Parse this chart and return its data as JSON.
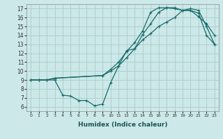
{
  "xlabel": "Humidex (Indice chaleur)",
  "bg_color": "#cce8e8",
  "grid_color": "#aacccc",
  "line_color": "#1a6b6b",
  "xlim": [
    -0.5,
    23.5
  ],
  "ylim": [
    5.5,
    17.5
  ],
  "xticks": [
    0,
    1,
    2,
    3,
    4,
    5,
    6,
    7,
    8,
    9,
    10,
    11,
    12,
    13,
    14,
    15,
    16,
    17,
    18,
    19,
    20,
    21,
    22,
    23
  ],
  "yticks": [
    6,
    7,
    8,
    9,
    10,
    11,
    12,
    13,
    14,
    15,
    16,
    17
  ],
  "line1_x": [
    0,
    1,
    2,
    3,
    4,
    5,
    6,
    7,
    8,
    9,
    10,
    11,
    12,
    13,
    14,
    15,
    16,
    17,
    18,
    19,
    20,
    21,
    22,
    23
  ],
  "line1_y": [
    9,
    9,
    9,
    9,
    7.3,
    7.2,
    6.7,
    6.7,
    6.1,
    6.3,
    8.7,
    10.6,
    12.3,
    12.5,
    14.1,
    15.3,
    16.6,
    17.1,
    17.1,
    16.8,
    16.8,
    16.1,
    15.3,
    14.0
  ],
  "line2_x": [
    0,
    1,
    2,
    3,
    9,
    10,
    11,
    12,
    13,
    14,
    15,
    16,
    17,
    18,
    19,
    20,
    21,
    22,
    23
  ],
  "line2_y": [
    9,
    9,
    9,
    9.2,
    9.5,
    10.0,
    10.6,
    11.5,
    12.5,
    13.5,
    14.2,
    15.0,
    15.5,
    16.0,
    16.8,
    17.0,
    16.8,
    15.0,
    13.0
  ],
  "line3_x": [
    0,
    1,
    2,
    3,
    9,
    10,
    11,
    12,
    13,
    14,
    15,
    16,
    17,
    18,
    19,
    20,
    21,
    22,
    23
  ],
  "line3_y": [
    9,
    9,
    9,
    9.2,
    9.5,
    10.2,
    11.0,
    12.2,
    13.2,
    14.5,
    16.6,
    17.1,
    17.1,
    17.0,
    16.8,
    16.8,
    16.5,
    14.0,
    13.0
  ],
  "xlabel_fontsize": 6.5,
  "xlabel_color": "#1a5555",
  "tick_fontsize_x": 4.5,
  "tick_fontsize_y": 5.5,
  "linewidth": 0.9,
  "markersize": 3.5
}
